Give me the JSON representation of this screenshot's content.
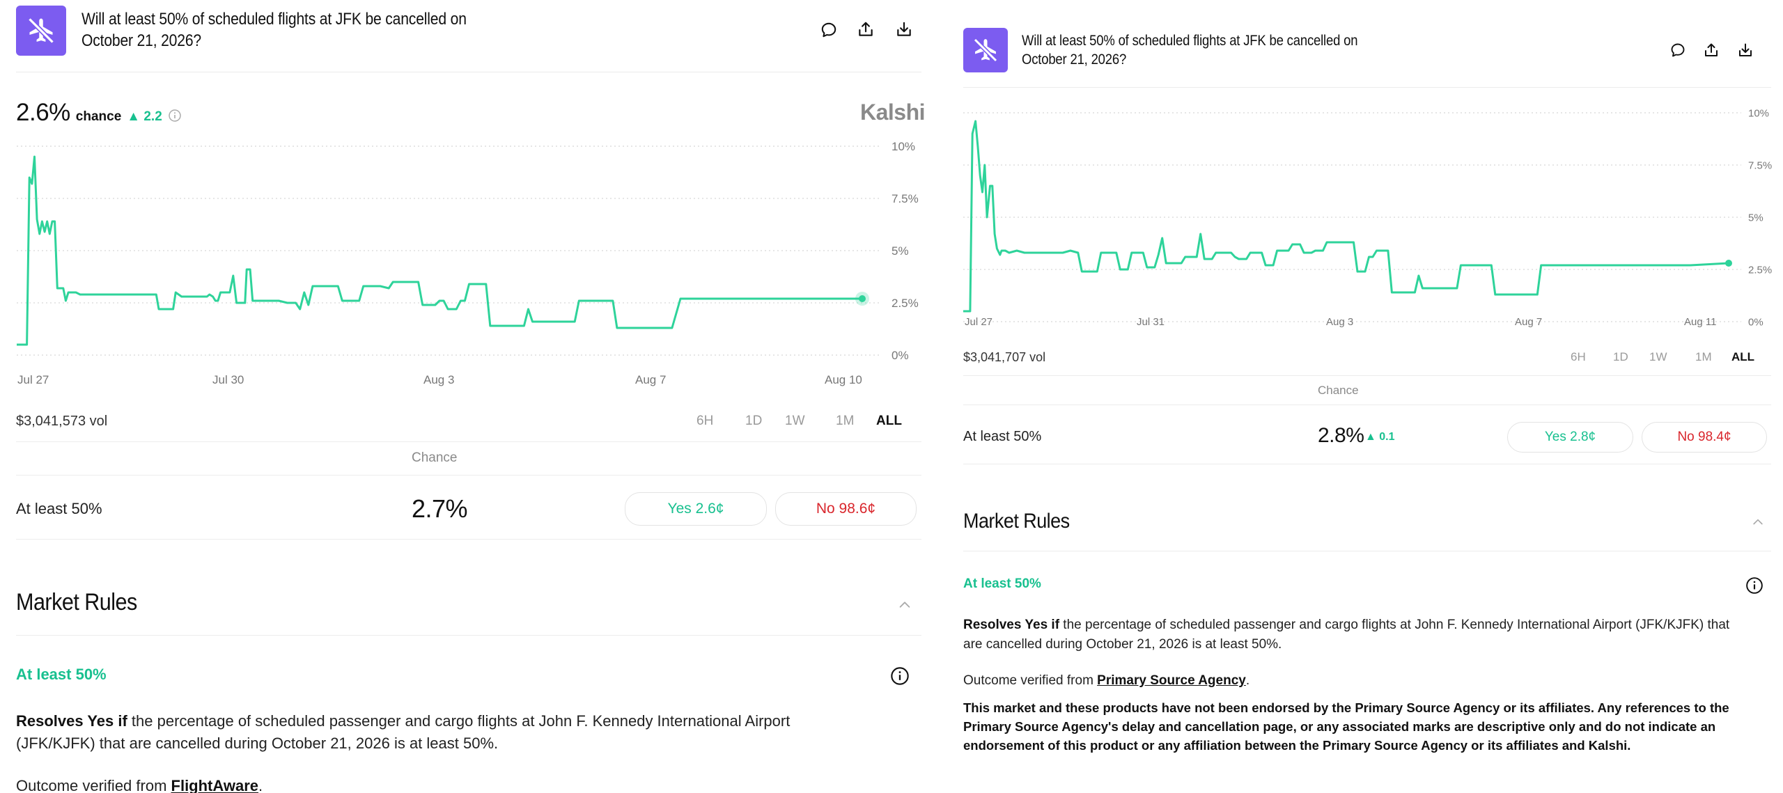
{
  "market": {
    "title_line1": "Will at least 50% of scheduled flights at JFK be cancelled on",
    "title_line2": "October 21, 2026?",
    "brand": "Kalshi",
    "chance_word": "chance",
    "chance_head": "Chance",
    "rules_title": "Market Rules",
    "outcome_label": "At least 50%",
    "ranges": [
      "6H",
      "1D",
      "1W",
      "1M",
      "ALL"
    ],
    "active_range": "ALL",
    "resolves_bold": "Resolves Yes if",
    "resolves_text": " the percentage of scheduled passenger and cargo flights at John F. Kennedy International Airport (JFK/KJFK) that are cancelled during October 21, 2026 is at least 50%.",
    "verified_prefix": "Outcome verified from "
  },
  "left": {
    "current_pct": "2.6%",
    "delta": "2.2",
    "volume": "$3,041,573 vol",
    "row_pct": "2.7%",
    "yes_label": "Yes 2.6¢",
    "no_label": "No 98.6¢",
    "source_link": "FlightAware",
    "chart_data": {
      "type": "line",
      "x_ticks": [
        "Jul 27",
        "Jul 30",
        "Aug 3",
        "Aug 7",
        "Aug 10"
      ],
      "y_ticks": [
        "10%",
        "7.5%",
        "5%",
        "2.5%",
        "0%"
      ],
      "ylim": [
        0,
        10
      ],
      "grid": true,
      "series_color": "#2ed39a",
      "points": [
        [
          0.0,
          0.5
        ],
        [
          0.012,
          0.5
        ],
        [
          0.015,
          8.5
        ],
        [
          0.018,
          8.2
        ],
        [
          0.021,
          9.5
        ],
        [
          0.024,
          6.5
        ],
        [
          0.027,
          5.8
        ],
        [
          0.03,
          6.4
        ],
        [
          0.033,
          5.9
        ],
        [
          0.036,
          6.4
        ],
        [
          0.039,
          5.8
        ],
        [
          0.042,
          6.4
        ],
        [
          0.045,
          6.4
        ],
        [
          0.048,
          3.2
        ],
        [
          0.055,
          3.2
        ],
        [
          0.058,
          2.6
        ],
        [
          0.061,
          3.0
        ],
        [
          0.065,
          3.0
        ],
        [
          0.07,
          3.0
        ],
        [
          0.075,
          2.9
        ],
        [
          0.085,
          2.9
        ],
        [
          0.095,
          2.9
        ],
        [
          0.105,
          2.9
        ],
        [
          0.115,
          2.9
        ],
        [
          0.125,
          2.9
        ],
        [
          0.135,
          2.9
        ],
        [
          0.145,
          2.9
        ],
        [
          0.155,
          2.9
        ],
        [
          0.16,
          2.9
        ],
        [
          0.165,
          2.9
        ],
        [
          0.168,
          2.2
        ],
        [
          0.185,
          2.2
        ],
        [
          0.188,
          3.0
        ],
        [
          0.195,
          2.8
        ],
        [
          0.205,
          2.8
        ],
        [
          0.215,
          2.8
        ],
        [
          0.225,
          2.8
        ],
        [
          0.228,
          2.9
        ],
        [
          0.232,
          2.8
        ],
        [
          0.235,
          2.6
        ],
        [
          0.238,
          2.6
        ],
        [
          0.241,
          3.0
        ],
        [
          0.252,
          3.0
        ],
        [
          0.256,
          3.8
        ],
        [
          0.26,
          2.5
        ],
        [
          0.265,
          2.5
        ],
        [
          0.27,
          2.5
        ],
        [
          0.272,
          4.1
        ],
        [
          0.276,
          4.1
        ],
        [
          0.279,
          2.6
        ],
        [
          0.29,
          2.6
        ],
        [
          0.3,
          2.6
        ],
        [
          0.31,
          2.6
        ],
        [
          0.32,
          2.5
        ],
        [
          0.33,
          2.5
        ],
        [
          0.335,
          2.2
        ],
        [
          0.34,
          3.0
        ],
        [
          0.345,
          2.4
        ],
        [
          0.35,
          3.3
        ],
        [
          0.37,
          3.3
        ],
        [
          0.375,
          3.3
        ],
        [
          0.38,
          3.3
        ],
        [
          0.385,
          2.6
        ],
        [
          0.405,
          2.6
        ],
        [
          0.41,
          3.3
        ],
        [
          0.42,
          3.3
        ],
        [
          0.43,
          3.3
        ],
        [
          0.44,
          3.2
        ],
        [
          0.445,
          3.5
        ],
        [
          0.47,
          3.5
        ],
        [
          0.475,
          3.5
        ],
        [
          0.48,
          2.4
        ],
        [
          0.495,
          2.4
        ],
        [
          0.5,
          2.6
        ],
        [
          0.505,
          2.6
        ],
        [
          0.51,
          2.2
        ],
        [
          0.52,
          2.2
        ],
        [
          0.525,
          2.6
        ],
        [
          0.53,
          2.6
        ],
        [
          0.535,
          3.4
        ],
        [
          0.555,
          3.4
        ],
        [
          0.56,
          1.4
        ],
        [
          0.6,
          1.4
        ],
        [
          0.605,
          2.2
        ],
        [
          0.61,
          1.6
        ],
        [
          0.64,
          1.6
        ],
        [
          0.66,
          1.6
        ],
        [
          0.665,
          2.6
        ],
        [
          0.705,
          2.6
        ],
        [
          0.71,
          1.3
        ],
        [
          0.755,
          1.3
        ],
        [
          0.765,
          1.3
        ],
        [
          0.775,
          1.3
        ],
        [
          0.785,
          2.7
        ],
        [
          0.82,
          2.7
        ],
        [
          0.86,
          2.7
        ],
        [
          0.9,
          2.7
        ],
        [
          0.94,
          2.7
        ],
        [
          0.98,
          2.7
        ],
        [
          1.0,
          2.7
        ]
      ]
    }
  },
  "right": {
    "volume": "$3,041,707 vol",
    "row_pct": "2.8%",
    "row_delta": "0.1",
    "yes_label": "Yes 2.8¢",
    "no_label": "No 98.4¢",
    "source_link": "Primary Source Agency",
    "disclaimer": "This market and these products have not been endorsed by the Primary Source Agency or its affiliates. Any references to the Primary Source Agency's delay and cancellation page, or any associated marks are descriptive only and do not indicate an endorsement of this product or any affiliation between the Primary Source Agency or its affiliates and Kalshi.",
    "chart_data": {
      "type": "line",
      "x_ticks": [
        "Jul 27",
        "Jul 31",
        "Aug 3",
        "Aug 7",
        "Aug 11"
      ],
      "y_ticks": [
        "10%",
        "7.5%",
        "5%",
        "2.5%",
        "0%"
      ],
      "ylim": [
        0,
        10
      ],
      "grid": true,
      "series_color": "#2ed39a",
      "points": [
        [
          0.0,
          0.5
        ],
        [
          0.009,
          0.5
        ],
        [
          0.012,
          9.0
        ],
        [
          0.016,
          9.6
        ],
        [
          0.019,
          8.4
        ],
        [
          0.022,
          7.0
        ],
        [
          0.025,
          6.2
        ],
        [
          0.028,
          7.5
        ],
        [
          0.031,
          5.0
        ],
        [
          0.035,
          6.5
        ],
        [
          0.038,
          6.5
        ],
        [
          0.041,
          4.2
        ],
        [
          0.044,
          3.5
        ],
        [
          0.048,
          3.2
        ],
        [
          0.05,
          3.4
        ],
        [
          0.055,
          3.4
        ],
        [
          0.06,
          3.3
        ],
        [
          0.07,
          3.4
        ],
        [
          0.08,
          3.3
        ],
        [
          0.09,
          3.3
        ],
        [
          0.1,
          3.3
        ],
        [
          0.11,
          3.3
        ],
        [
          0.12,
          3.3
        ],
        [
          0.13,
          3.3
        ],
        [
          0.14,
          3.4
        ],
        [
          0.15,
          3.3
        ],
        [
          0.155,
          2.4
        ],
        [
          0.175,
          2.4
        ],
        [
          0.18,
          3.3
        ],
        [
          0.19,
          3.3
        ],
        [
          0.2,
          3.3
        ],
        [
          0.205,
          2.5
        ],
        [
          0.215,
          2.5
        ],
        [
          0.22,
          3.3
        ],
        [
          0.235,
          3.3
        ],
        [
          0.24,
          2.6
        ],
        [
          0.25,
          2.6
        ],
        [
          0.255,
          3.2
        ],
        [
          0.26,
          4.0
        ],
        [
          0.265,
          2.8
        ],
        [
          0.285,
          2.8
        ],
        [
          0.29,
          3.1
        ],
        [
          0.3,
          3.1
        ],
        [
          0.305,
          3.1
        ],
        [
          0.31,
          4.2
        ],
        [
          0.315,
          3.0
        ],
        [
          0.325,
          3.0
        ],
        [
          0.33,
          3.3
        ],
        [
          0.345,
          3.3
        ],
        [
          0.35,
          3.3
        ],
        [
          0.355,
          3.1
        ],
        [
          0.36,
          3.0
        ],
        [
          0.37,
          3.0
        ],
        [
          0.375,
          3.3
        ],
        [
          0.38,
          3.3
        ],
        [
          0.39,
          3.3
        ],
        [
          0.395,
          2.7
        ],
        [
          0.405,
          2.7
        ],
        [
          0.41,
          3.4
        ],
        [
          0.425,
          3.4
        ],
        [
          0.43,
          3.7
        ],
        [
          0.44,
          3.7
        ],
        [
          0.445,
          3.3
        ],
        [
          0.455,
          3.3
        ],
        [
          0.46,
          3.4
        ],
        [
          0.47,
          3.4
        ],
        [
          0.475,
          3.8
        ],
        [
          0.51,
          3.8
        ],
        [
          0.515,
          2.4
        ],
        [
          0.525,
          2.4
        ],
        [
          0.53,
          3.1
        ],
        [
          0.535,
          3.1
        ],
        [
          0.54,
          3.4
        ],
        [
          0.555,
          3.4
        ],
        [
          0.56,
          1.4
        ],
        [
          0.59,
          1.4
        ],
        [
          0.595,
          2.2
        ],
        [
          0.6,
          1.6
        ],
        [
          0.645,
          1.6
        ],
        [
          0.65,
          2.7
        ],
        [
          0.69,
          2.7
        ],
        [
          0.695,
          1.3
        ],
        [
          0.75,
          1.3
        ],
        [
          0.755,
          2.7
        ],
        [
          0.8,
          2.7
        ],
        [
          0.85,
          2.7
        ],
        [
          0.9,
          2.7
        ],
        [
          0.95,
          2.7
        ],
        [
          1.0,
          2.8
        ]
      ]
    }
  }
}
